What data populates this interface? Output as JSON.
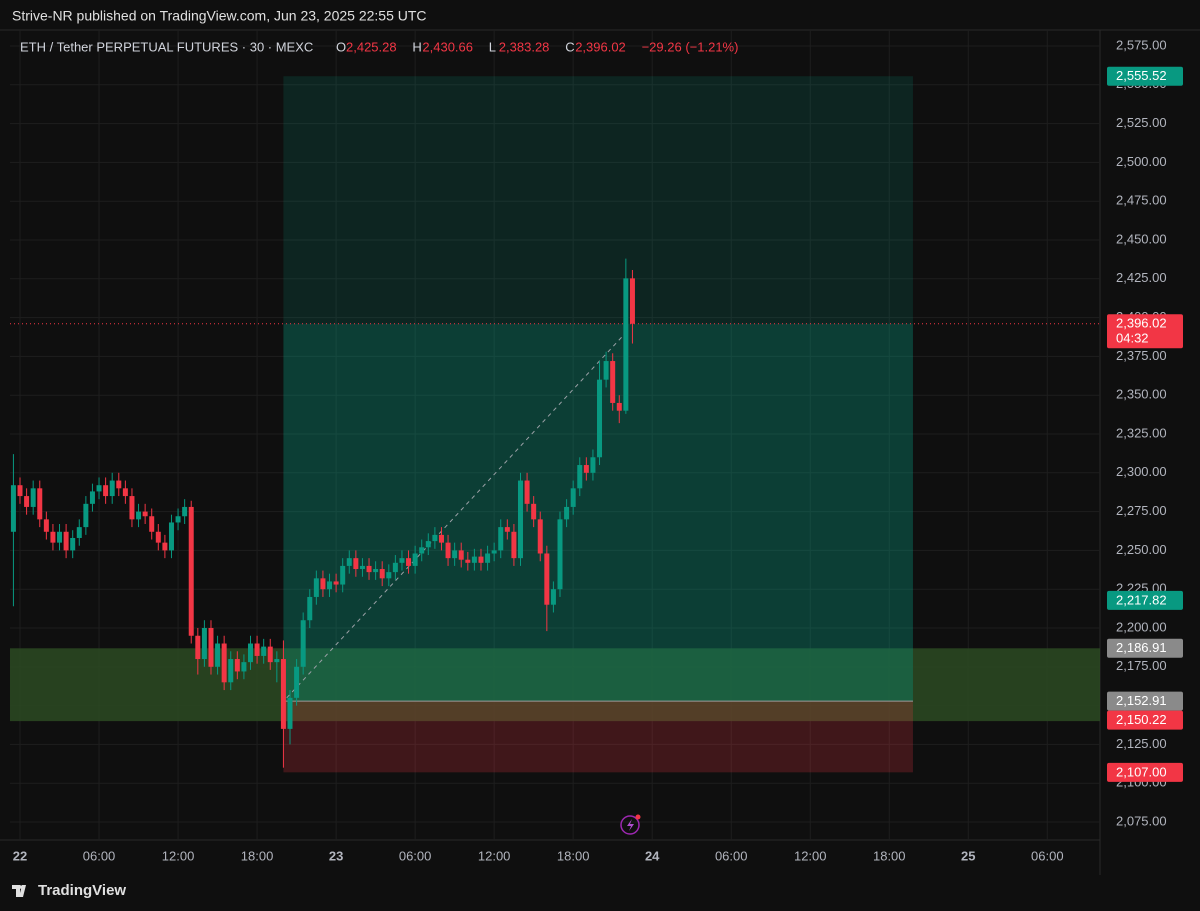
{
  "header": {
    "published": "Strive-NR published on TradingView.com, Jun 23, 2025 22:55 UTC"
  },
  "footer": {
    "brand": "TradingView"
  },
  "chart_data": {
    "type": "candlestick",
    "symbol": "ETH / Tether PERPETUAL FUTURES · 30 · MEXC",
    "legend": {
      "keys": [
        "O",
        "H",
        "L",
        "C"
      ],
      "open": {
        "value": 2425.28,
        "label": "2,425.28"
      },
      "high": {
        "value": 2430.66,
        "label": "2,430.66"
      },
      "low": {
        "value": 2383.28,
        "label": "2,383.28"
      },
      "close": {
        "value": 2396.02,
        "label": "2,396.02"
      },
      "change": "−29.26 (−1.21%)"
    },
    "up_color": "#089981",
    "down_color": "#f23645",
    "x": [
      -0.5,
      0,
      0.5,
      1,
      1.5,
      2,
      2.5,
      3,
      3.5,
      4,
      4.5,
      5,
      5.5,
      6,
      6.5,
      7,
      7.5,
      8,
      8.5,
      9,
      9.5,
      10,
      10.5,
      11,
      11.5,
      12,
      12.5,
      13,
      13.5,
      14,
      14.5,
      15,
      15.5,
      16,
      16.5,
      17,
      17.5,
      18,
      18.5,
      19,
      19.5,
      20,
      20.5,
      21,
      21.5,
      22,
      22.5,
      23,
      23.5,
      24,
      24.5,
      25,
      25.5,
      26,
      26.5,
      27,
      27.5,
      28,
      28.5,
      29,
      29.5,
      30,
      30.5,
      31,
      31.5,
      32,
      32.5,
      33,
      33.5,
      34,
      34.5,
      35,
      35.5,
      36,
      36.5,
      37,
      37.5,
      38,
      38.5,
      39,
      39.5,
      40,
      40.5,
      41,
      41.5,
      42,
      42.5,
      43,
      43.5,
      44,
      44.5,
      45,
      45.5,
      46,
      46.5
    ],
    "open": [
      2262,
      2292,
      2285,
      2278,
      2290,
      2270,
      2262,
      2255,
      2262,
      2250,
      2258,
      2265,
      2280,
      2288,
      2292,
      2285,
      2295,
      2290,
      2285,
      2270,
      2275,
      2272,
      2262,
      2255,
      2250,
      2268,
      2272,
      2278,
      2195,
      2180,
      2200,
      2175,
      2190,
      2165,
      2180,
      2172,
      2178,
      2190,
      2182,
      2188,
      2178,
      2180,
      2135,
      2155,
      2175,
      2205,
      2220,
      2232,
      2225,
      2230,
      2228,
      2240,
      2245,
      2238,
      2240,
      2236,
      2238,
      2232,
      2236,
      2242,
      2245,
      2240,
      2248,
      2252,
      2256,
      2260,
      2255,
      2245,
      2250,
      2244,
      2242,
      2246,
      2242,
      2248,
      2250,
      2265,
      2262,
      2245,
      2295,
      2280,
      2270,
      2248,
      2215,
      2225,
      2270,
      2278,
      2290,
      2305,
      2300,
      2310,
      2360,
      2372,
      2345,
      2340,
      2425.28
    ],
    "high": [
      2312,
      2297,
      2290,
      2295,
      2295,
      2275,
      2267,
      2267,
      2267,
      2263,
      2270,
      2285,
      2293,
      2297,
      2297,
      2300,
      2300,
      2295,
      2290,
      2280,
      2280,
      2277,
      2267,
      2260,
      2273,
      2277,
      2283,
      2282,
      2200,
      2205,
      2205,
      2195,
      2195,
      2185,
      2185,
      2183,
      2195,
      2195,
      2193,
      2193,
      2185,
      2192,
      2160,
      2180,
      2210,
      2225,
      2237,
      2237,
      2235,
      2235,
      2245,
      2250,
      2250,
      2245,
      2245,
      2243,
      2243,
      2241,
      2247,
      2250,
      2250,
      2253,
      2257,
      2261,
      2265,
      2265,
      2260,
      2255,
      2255,
      2249,
      2251,
      2251,
      2253,
      2255,
      2270,
      2270,
      2267,
      2300,
      2300,
      2285,
      2275,
      2253,
      2230,
      2275,
      2283,
      2295,
      2310,
      2310,
      2315,
      2372,
      2378,
      2377,
      2350,
      2438,
      2430.66
    ],
    "low": [
      2214,
      2280,
      2273,
      2273,
      2265,
      2257,
      2250,
      2250,
      2245,
      2245,
      2253,
      2260,
      2275,
      2283,
      2280,
      2280,
      2285,
      2280,
      2265,
      2265,
      2267,
      2257,
      2250,
      2245,
      2245,
      2263,
      2267,
      2190,
      2170,
      2175,
      2170,
      2170,
      2160,
      2160,
      2167,
      2167,
      2173,
      2177,
      2177,
      2173,
      2165,
      2110,
      2125,
      2150,
      2170,
      2200,
      2215,
      2220,
      2220,
      2223,
      2223,
      2235,
      2233,
      2233,
      2231,
      2231,
      2227,
      2227,
      2231,
      2237,
      2235,
      2235,
      2243,
      2247,
      2251,
      2250,
      2240,
      2240,
      2239,
      2237,
      2237,
      2237,
      2237,
      2243,
      2245,
      2257,
      2240,
      2240,
      2275,
      2265,
      2243,
      2198,
      2210,
      2220,
      2265,
      2273,
      2285,
      2295,
      2295,
      2305,
      2355,
      2340,
      2332,
      2338,
      2383.28
    ],
    "close": [
      2292,
      2285,
      2278,
      2290,
      2270,
      2262,
      2255,
      2262,
      2250,
      2258,
      2265,
      2280,
      2288,
      2292,
      2285,
      2295,
      2290,
      2285,
      2270,
      2275,
      2272,
      2262,
      2255,
      2250,
      2268,
      2272,
      2278,
      2195,
      2180,
      2200,
      2175,
      2190,
      2165,
      2180,
      2172,
      2178,
      2190,
      2182,
      2188,
      2178,
      2180,
      2135,
      2155,
      2175,
      2205,
      2220,
      2232,
      2225,
      2230,
      2228,
      2240,
      2245,
      2238,
      2240,
      2236,
      2238,
      2232,
      2236,
      2242,
      2245,
      2240,
      2248,
      2252,
      2256,
      2260,
      2255,
      2245,
      2250,
      2244,
      2242,
      2246,
      2242,
      2248,
      2250,
      2265,
      2262,
      2245,
      2295,
      2280,
      2270,
      2248,
      2215,
      2225,
      2270,
      2278,
      2290,
      2305,
      2300,
      2310,
      2360,
      2372,
      2345,
      2340,
      2425.28,
      2396.02
    ],
    "xlim": [
      -0.76,
      82
    ],
    "xticks": [
      {
        "value": 0,
        "label": "22"
      },
      {
        "value": 6,
        "label": "06:00"
      },
      {
        "value": 12,
        "label": "12:00"
      },
      {
        "value": 18,
        "label": "18:00"
      },
      {
        "value": 24,
        "label": "23"
      },
      {
        "value": 30,
        "label": "06:00"
      },
      {
        "value": 36,
        "label": "12:00"
      },
      {
        "value": 42,
        "label": "18:00"
      },
      {
        "value": 48,
        "label": "24"
      },
      {
        "value": 54,
        "label": "06:00"
      },
      {
        "value": 60,
        "label": "12:00"
      },
      {
        "value": 66,
        "label": "18:00"
      },
      {
        "value": 72,
        "label": "25"
      },
      {
        "value": 78,
        "label": "06:00"
      }
    ],
    "ylim": [
      2063.4,
      2585.3
    ],
    "yticks": [
      {
        "value": 2075,
        "label": "2,075.00"
      },
      {
        "value": 2100,
        "label": "2,100.00"
      },
      {
        "value": 2125,
        "label": "2,125.00"
      },
      {
        "value": 2150,
        "label": "2,150.00"
      },
      {
        "value": 2175,
        "label": "2,175.00"
      },
      {
        "value": 2200,
        "label": "2,200.00"
      },
      {
        "value": 2225,
        "label": "2,225.00"
      },
      {
        "value": 2250,
        "label": "2,250.00"
      },
      {
        "value": 2275,
        "label": "2,275.00"
      },
      {
        "value": 2300,
        "label": "2,300.00"
      },
      {
        "value": 2325,
        "label": "2,325.00"
      },
      {
        "value": 2350,
        "label": "2,350.00"
      },
      {
        "value": 2375,
        "label": "2,375.00"
      },
      {
        "value": 2400,
        "label": "2,400.00"
      },
      {
        "value": 2425,
        "label": "2,425.00"
      },
      {
        "value": 2450,
        "label": "2,450.00"
      },
      {
        "value": 2475,
        "label": "2,475.00"
      },
      {
        "value": 2500,
        "label": "2,500.00"
      },
      {
        "value": 2525,
        "label": "2,525.00"
      },
      {
        "value": 2550,
        "label": "2,550.00"
      },
      {
        "value": 2575,
        "label": "2,575.00"
      }
    ],
    "grid": true,
    "zone": {
      "top": 2186.91,
      "bottom": 2140,
      "color": "#2b4a22"
    },
    "position": {
      "x": [
        20,
        67.8
      ],
      "entry": 2152.91,
      "target": 2555.52,
      "stop": 2107.0
    },
    "trend_line": {
      "x": [
        20.25,
        45.75
      ],
      "y": [
        2155,
        2388
      ]
    },
    "price_labels": [
      {
        "value": 2555.52,
        "label": "2,555.52",
        "color": "#089981"
      },
      {
        "value": 2396.02,
        "label": "2,396.02",
        "countdown": "04:32",
        "color": "#f23645"
      },
      {
        "value": 2217.82,
        "label": "2,217.82",
        "color": "#089981"
      },
      {
        "value": 2186.91,
        "label": "2,186.91",
        "color": "#8a8a8a"
      },
      {
        "value": 2152.91,
        "label": "2,152.91",
        "color": "#8a8a8a"
      },
      {
        "value": 2150.22,
        "label": "2,150.22",
        "color": "#f23645"
      },
      {
        "value": 2107.0,
        "label": "2,107.00",
        "color": "#f23645"
      }
    ]
  }
}
